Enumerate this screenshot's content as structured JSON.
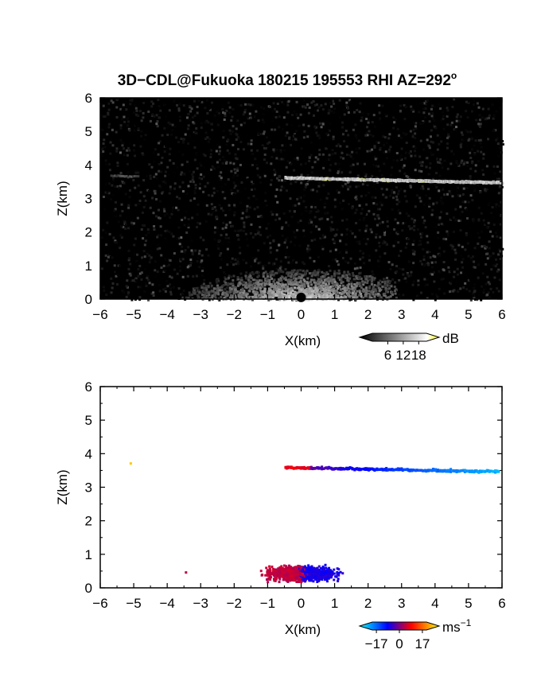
{
  "figure": {
    "title": "3D−CDL@Fukuoka 180215 195553 RHI AZ=292",
    "title_degree_mark": "o"
  },
  "chart_data": [
    {
      "type": "heatmap",
      "panel": "backscatter intensity",
      "xlabel": "X(km)",
      "ylabel": "Z(km)",
      "xlim": [
        -6,
        6
      ],
      "ylim": [
        0,
        6
      ],
      "x_ticks": [
        -6,
        -5,
        -4,
        -3,
        -2,
        -1,
        0,
        1,
        2,
        3,
        4,
        5,
        6
      ],
      "y_ticks": [
        0,
        1,
        2,
        3,
        4,
        5,
        6
      ],
      "x_tick_labels": [
        "−6",
        "−5",
        "−4",
        "−3",
        "−2",
        "−1",
        "0",
        "1",
        "2",
        "3",
        "4",
        "5",
        "6"
      ],
      "y_tick_labels": [
        "0",
        "1",
        "2",
        "3",
        "4",
        "5",
        "6"
      ],
      "colorbar": {
        "unit": "dB",
        "tick_values": [
          6,
          12,
          18
        ],
        "tick_labels": [
          "6",
          "12",
          "18"
        ],
        "range": [
          0,
          21
        ],
        "colors": [
          "#000000",
          "#ffffff",
          "#ffff00"
        ]
      },
      "features": [
        {
          "name": "cloud layer",
          "x_range": [
            -0.5,
            6.0
          ],
          "z_start": 3.65,
          "z_end": 3.5,
          "value_db": 14,
          "peak_value_db": 20,
          "peak_x": [
            0.75,
            1.8,
            2.5,
            3.6
          ]
        },
        {
          "name": "weak layer segment",
          "x_range": [
            -5.7,
            -4.9
          ],
          "z": 3.7,
          "value_db": 6
        },
        {
          "name": "near-ground return",
          "x_range": [
            -3.8,
            2.8
          ],
          "z_range": [
            0,
            0.9
          ],
          "center_x": 0.0,
          "value_db": 12
        }
      ]
    },
    {
      "type": "scatter",
      "panel": "Doppler velocity",
      "xlabel": "X(km)",
      "ylabel": "Z(km)",
      "xlim": [
        -6,
        6
      ],
      "ylim": [
        0,
        6
      ],
      "x_ticks": [
        -6,
        -5,
        -4,
        -3,
        -2,
        -1,
        0,
        1,
        2,
        3,
        4,
        5,
        6
      ],
      "y_ticks": [
        0,
        1,
        2,
        3,
        4,
        5,
        6
      ],
      "x_tick_labels": [
        "−6",
        "−5",
        "−4",
        "−3",
        "−2",
        "−1",
        "0",
        "1",
        "2",
        "3",
        "4",
        "5",
        "6"
      ],
      "y_tick_labels": [
        "0",
        "1",
        "2",
        "3",
        "4",
        "5",
        "6"
      ],
      "colorbar": {
        "unit": "ms",
        "unit_exponent": "−1",
        "tick_values": [
          -17,
          0,
          17
        ],
        "tick_labels": [
          "−17",
          "0",
          "17"
        ],
        "range": [
          -20,
          20
        ],
        "colors": [
          "#00ffff",
          "#0000ff",
          "#ff0000",
          "#ffff00"
        ]
      },
      "features": [
        {
          "name": "cloud layer",
          "x_range": [
            -0.5,
            5.9
          ],
          "z_start": 3.62,
          "z_end": 3.5,
          "velocity_at_start": 3,
          "velocity_at_end": -16
        },
        {
          "name": "isolated point",
          "x": -5.1,
          "z": 3.72,
          "velocity": 17
        },
        {
          "name": "isolated point",
          "x": -3.45,
          "z": 0.47,
          "velocity": 3
        },
        {
          "name": "near-ground echoes",
          "x_range": [
            -2.3,
            2.5
          ],
          "z_range": [
            0.2,
            0.9
          ],
          "center_x": 0.0,
          "velocity_left_of_center": 3,
          "velocity_right_of_center": -5
        }
      ]
    }
  ]
}
